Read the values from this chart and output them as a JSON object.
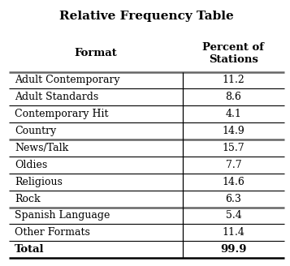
{
  "title": "Relative Frequency Table",
  "col1_header": "Format",
  "col2_header": "Percent of\nStations",
  "rows": [
    [
      "Adult Contemporary",
      "11.2"
    ],
    [
      "Adult Standards",
      "8.6"
    ],
    [
      "Contemporary Hit",
      "4.1"
    ],
    [
      "Country",
      "14.9"
    ],
    [
      "News/Talk",
      "15.7"
    ],
    [
      "Oldies",
      "7.7"
    ],
    [
      "Religious",
      "14.6"
    ],
    [
      "Rock",
      "6.3"
    ],
    [
      "Spanish Language",
      "5.4"
    ],
    [
      "Other Formats",
      "11.4"
    ]
  ],
  "total_label": "Total",
  "total_value": "99.9",
  "background_color": "#ffffff",
  "thick_line_rows": [
    4,
    8
  ],
  "figsize": [
    3.57,
    3.28
  ],
  "dpi": 100
}
